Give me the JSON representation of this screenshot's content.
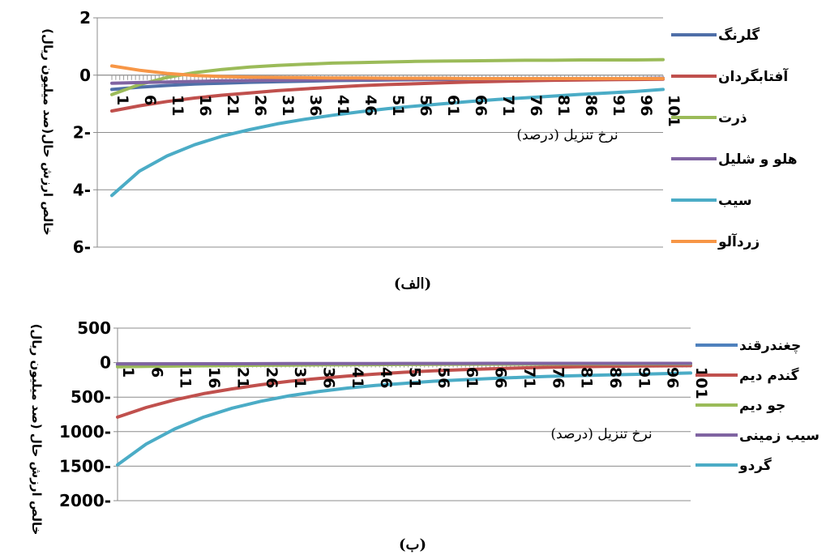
{
  "chart_data": [
    {
      "type": "line",
      "caption": "(الف)",
      "xlabel": "نرخ تنزیل (درصد)",
      "ylabel": "خالص ارزش حال(صد میلیون ریال)",
      "ytick_labels": [
        "2",
        "0",
        "2-",
        "4-",
        "6-"
      ],
      "ytick_values": [
        2,
        0,
        -2,
        -4,
        -6
      ],
      "ylim": [
        -6,
        2
      ],
      "x": [
        1,
        6,
        11,
        16,
        21,
        26,
        31,
        36,
        41,
        46,
        51,
        56,
        61,
        66,
        71,
        76,
        81,
        86,
        91,
        96,
        101
      ],
      "grid": true,
      "legend_position": "right",
      "series": [
        {
          "name": "گلرنگ",
          "color": "#4f6fa8",
          "values": [
            -0.5,
            -0.42,
            -0.36,
            -0.31,
            -0.28,
            -0.25,
            -0.23,
            -0.21,
            -0.19,
            -0.18,
            -0.17,
            -0.16,
            -0.15,
            -0.14,
            -0.14,
            -0.13,
            -0.13,
            -0.12,
            -0.12,
            -0.12,
            -0.11
          ]
        },
        {
          "name": "آفتابگردان",
          "color": "#c0504d",
          "values": [
            -1.25,
            -1.07,
            -0.92,
            -0.8,
            -0.7,
            -0.62,
            -0.54,
            -0.48,
            -0.42,
            -0.37,
            -0.33,
            -0.3,
            -0.27,
            -0.24,
            -0.22,
            -0.2,
            -0.18,
            -0.17,
            -0.16,
            -0.15,
            -0.14
          ]
        },
        {
          "name": "ذرت",
          "color": "#9bbb59",
          "values": [
            -0.68,
            -0.33,
            -0.08,
            0.09,
            0.2,
            0.28,
            0.34,
            0.38,
            0.42,
            0.44,
            0.46,
            0.48,
            0.49,
            0.5,
            0.51,
            0.52,
            0.52,
            0.53,
            0.53,
            0.53,
            0.54
          ]
        },
        {
          "name": "هلو و شلیل",
          "color": "#8064a2",
          "values": [
            -0.28,
            -0.26,
            -0.24,
            -0.22,
            -0.2,
            -0.19,
            -0.18,
            -0.17,
            -0.16,
            -0.15,
            -0.15,
            -0.14,
            -0.14,
            -0.13,
            -0.13,
            -0.13,
            -0.12,
            -0.12,
            -0.12,
            -0.12,
            -0.11
          ]
        },
        {
          "name": "سیب",
          "color": "#4bacc6",
          "values": [
            -4.2,
            -3.35,
            -2.82,
            -2.43,
            -2.13,
            -1.9,
            -1.7,
            -1.54,
            -1.4,
            -1.28,
            -1.17,
            -1.08,
            -1.0,
            -0.92,
            -0.85,
            -0.79,
            -0.73,
            -0.67,
            -0.62,
            -0.57,
            -0.5
          ]
        },
        {
          "name": "زردآلو",
          "color": "#f79646",
          "values": [
            0.32,
            0.17,
            0.06,
            -0.01,
            -0.05,
            -0.07,
            -0.08,
            -0.09,
            -0.1,
            -0.1,
            -0.11,
            -0.11,
            -0.11,
            -0.12,
            -0.12,
            -0.12,
            -0.12,
            -0.12,
            -0.12,
            -0.12,
            -0.12
          ]
        }
      ]
    },
    {
      "type": "line",
      "caption": "(ب)",
      "xlabel": "نرخ تنزیل (درصد)",
      "ylabel": "خالص ارزش حال (صد میلیون ریال)",
      "ytick_labels": [
        "500",
        "0",
        "500-",
        "1000-",
        "1500-",
        "2000-"
      ],
      "ytick_values": [
        500,
        0,
        -500,
        -1000,
        -1500,
        -2000
      ],
      "ylim": [
        -2000,
        500
      ],
      "x": [
        1,
        6,
        11,
        16,
        21,
        26,
        31,
        36,
        41,
        46,
        51,
        56,
        61,
        66,
        71,
        76,
        81,
        86,
        91,
        96,
        101
      ],
      "grid": true,
      "legend_position": "right",
      "series": [
        {
          "name": "چغندرقند",
          "color": "#4f81bd",
          "values": [
            -30,
            -28,
            -26,
            -25,
            -24,
            -23,
            -22,
            -21,
            -20,
            -20,
            -19,
            -19,
            -18,
            -18,
            -18,
            -17,
            -17,
            -17,
            -17,
            -16,
            -16
          ]
        },
        {
          "name": "گندم دیم",
          "color": "#c0504d",
          "values": [
            -790,
            -650,
            -540,
            -450,
            -380,
            -320,
            -270,
            -230,
            -195,
            -165,
            -140,
            -120,
            -103,
            -90,
            -78,
            -68,
            -60,
            -55,
            -50,
            -47,
            -45
          ]
        },
        {
          "name": "جو دیم",
          "color": "#9bbb59",
          "values": [
            -60,
            -55,
            -50,
            -46,
            -42,
            -39,
            -36,
            -33,
            -31,
            -29,
            -27,
            -26,
            -24,
            -23,
            -22,
            -21,
            -20,
            -19,
            -19,
            -18,
            -18
          ]
        },
        {
          "name": "سیب زمینی",
          "color": "#8064a2",
          "values": [
            -20,
            -19,
            -18,
            -17,
            -16,
            -15,
            -14,
            -14,
            -13,
            -13,
            -12,
            -12,
            -12,
            -11,
            -11,
            -11,
            -11,
            -10,
            -10,
            -10,
            -10
          ]
        },
        {
          "name": "گردو",
          "color": "#4bacc6",
          "values": [
            -1480,
            -1180,
            -960,
            -790,
            -660,
            -560,
            -480,
            -420,
            -370,
            -330,
            -300,
            -270,
            -250,
            -230,
            -215,
            -200,
            -190,
            -180,
            -170,
            -160,
            -150
          ]
        }
      ]
    }
  ]
}
